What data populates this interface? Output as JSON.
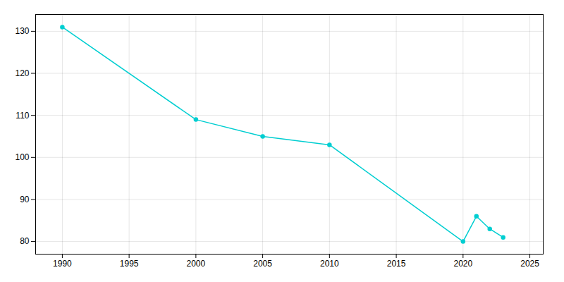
{
  "chart_data": {
    "type": "line",
    "x": [
      1990,
      2000,
      2005,
      2010,
      2020,
      2021,
      2022,
      2023
    ],
    "values": [
      131,
      109,
      105,
      103,
      80,
      86,
      83,
      81
    ],
    "color": "#00CED1",
    "marker": "o",
    "xlim": [
      1988,
      2026
    ],
    "ylim": [
      77,
      134
    ],
    "xticks": [
      1990,
      1995,
      2000,
      2005,
      2010,
      2015,
      2020,
      2025
    ],
    "yticks": [
      80,
      90,
      100,
      110,
      120,
      130
    ],
    "grid": true
  }
}
